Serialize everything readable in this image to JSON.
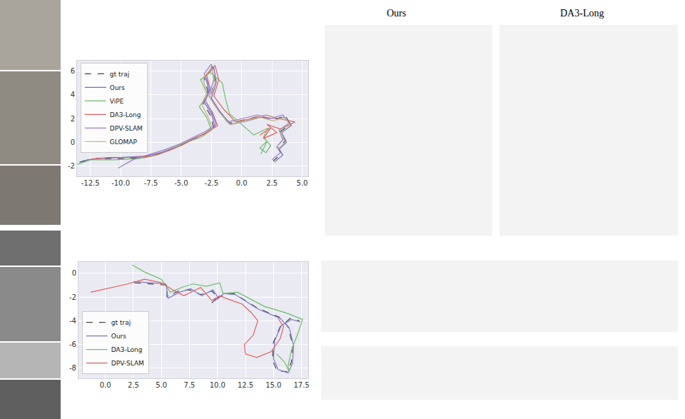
{
  "panel_titles": [
    "Ours",
    "DA3-Long"
  ],
  "chart_data": [
    {
      "type": "line",
      "grid": true,
      "legend": "upper left",
      "xlim": [
        -13.6,
        5.5
      ],
      "ylim": [
        -2.9,
        6.9
      ],
      "xticks": [
        -12.5,
        {
          "value": -10,
          "label": "-10.0"
        },
        -7.5,
        {
          "value": -5,
          "label": "-5.0"
        },
        -2.5,
        {
          "value": 0,
          "label": "0.0"
        },
        2.5,
        {
          "value": 5,
          "label": "5.0"
        }
      ],
      "yticks": [
        -2,
        0,
        2,
        4,
        6
      ],
      "series": [
        {
          "name": "gt traj",
          "color": "#444444",
          "line_style": "dashed",
          "x": [
            -13.4,
            -12,
            -10,
            -8,
            -6.8,
            -5.5,
            -4.3,
            -3.2,
            -2.3,
            -2.6,
            -3.2,
            -2.8,
            -3.1,
            -2.4,
            -2.2,
            -2.6,
            -1.9,
            -1.0,
            0.3,
            1.5,
            2.6,
            3.6,
            4.0,
            3.2,
            3.6,
            3.0,
            3.3,
            2.6
          ],
          "values": [
            -1.7,
            -1.4,
            -1.4,
            -1.3,
            -1.0,
            -0.5,
            0.1,
            0.6,
            1.2,
            2.3,
            3.3,
            4.3,
            5.5,
            6.4,
            5.2,
            3.8,
            2.7,
            1.6,
            1.9,
            2.2,
            1.9,
            2.2,
            1.5,
            0.9,
            0.1,
            -0.5,
            -1.0,
            -1.6
          ]
        },
        {
          "name": "Ours",
          "color": "#6b6ec9",
          "line_style": "solid",
          "x": [
            -13.2,
            -12,
            -10,
            -8,
            -6.7,
            -5.4,
            -4.2,
            -3.1,
            -2.2,
            -2.5,
            -3.1,
            -2.7,
            -3.0,
            -2.3,
            -2.1,
            -2.5,
            -1.8,
            -0.9,
            0.4,
            1.6,
            2.7,
            3.7,
            4.1,
            3.3,
            3.7,
            3.1,
            3.4,
            2.7
          ],
          "values": [
            -1.6,
            -1.4,
            -1.3,
            -1.2,
            -0.9,
            -0.4,
            0.2,
            0.7,
            1.3,
            2.4,
            3.4,
            4.4,
            5.6,
            6.3,
            5.1,
            3.7,
            2.6,
            1.5,
            1.8,
            2.1,
            2.0,
            2.1,
            1.4,
            0.8,
            0.0,
            -0.6,
            -1.1,
            -1.7
          ]
        },
        {
          "name": "ViPE",
          "color": "#6dbf6d",
          "line_style": "solid",
          "x": [
            -13.9,
            -12.5,
            -10.5,
            -8.5,
            -7,
            -5.8,
            -4.6,
            -3.4,
            -2.5,
            -2.9,
            -3.5,
            -2.8,
            -3.4,
            -2.6,
            -1.6,
            -1.3,
            -1.0,
            0.2,
            1.0,
            2.2,
            1.8,
            2.4,
            2.0,
            1.5,
            2.1,
            1.6
          ],
          "values": [
            -2.0,
            -1.5,
            -1.5,
            -1.4,
            -1.1,
            -0.6,
            0.0,
            0.4,
            1.0,
            2.1,
            3.0,
            4.0,
            5.3,
            5.9,
            5.0,
            3.5,
            2.4,
            1.3,
            0.6,
            1.2,
            0.4,
            -0.3,
            -0.9,
            -0.5,
            0.1,
            -1.0
          ]
        },
        {
          "name": "DA3-Long",
          "color": "#e0605e",
          "line_style": "solid",
          "x": [
            -12.8,
            -11,
            -9,
            -7.5,
            -6.2,
            -5.0,
            -3.9,
            -2.9,
            -2.0,
            -2.4,
            -3.0,
            -2.6,
            -2.9,
            -2.2,
            -1.9,
            -2.3,
            -1.5,
            -0.5,
            0.8,
            2.0,
            3.0,
            4.4,
            3.2,
            2.1,
            2.9,
            1.8,
            2.4,
            1.5
          ],
          "values": [
            -1.5,
            -1.3,
            -1.3,
            -1.2,
            -0.8,
            -0.3,
            0.3,
            0.8,
            1.4,
            2.5,
            3.5,
            4.5,
            5.7,
            6.5,
            5.3,
            3.9,
            2.8,
            1.7,
            2.0,
            2.3,
            2.0,
            1.7,
            1.1,
            1.5,
            0.8,
            0.3,
            1.2,
            0.6
          ]
        },
        {
          "name": "DPV-SLAM",
          "color": "#9a7cc4",
          "line_style": "solid",
          "x": [
            -10.2,
            -9,
            -7.8,
            -6.5,
            -5.2,
            -4.0,
            -3.0,
            -2.1,
            -2.5,
            -3.0,
            -2.6,
            -3.1,
            -2.5,
            -2.3,
            -2.7,
            -2.0,
            -1.2,
            0.1,
            1.3,
            2.4,
            3.4,
            3.9,
            3.1,
            3.4,
            2.9,
            3.2,
            2.5
          ],
          "values": [
            -2.2,
            -1.5,
            -1.1,
            -0.7,
            -0.2,
            0.4,
            0.9,
            1.5,
            2.6,
            3.5,
            4.6,
            5.8,
            6.6,
            5.3,
            3.9,
            2.8,
            1.7,
            2.0,
            2.3,
            2.0,
            2.3,
            1.6,
            1.0,
            0.2,
            -0.4,
            -0.9,
            -1.5
          ]
        },
        {
          "name": "GLOMAP",
          "color": "#c9b77a",
          "line_style": "solid",
          "x": [
            -3.2,
            -2.4,
            -2.8,
            -3.3,
            -2.9,
            -3.2,
            -2.5,
            -2.2,
            -2.6,
            -1.9,
            -1.0,
            0.3,
            1.5,
            2.6,
            3.6,
            4.0,
            3.2,
            3.6,
            3.0
          ],
          "values": [
            0.5,
            1.1,
            2.2,
            3.2,
            4.2,
            5.4,
            6.3,
            5.1,
            3.7,
            2.6,
            1.5,
            1.8,
            2.1,
            1.8,
            2.1,
            1.4,
            0.8,
            0.0,
            -0.6
          ]
        }
      ]
    },
    {
      "type": "line",
      "grid": true,
      "legend": "lower left",
      "xlim": [
        -2.4,
        18.1
      ],
      "ylim": [
        -8.85,
        0.95
      ],
      "xticks": [
        {
          "value": 0,
          "label": "0.0"
        },
        2.5,
        {
          "value": 5,
          "label": "5.0"
        },
        7.5,
        {
          "value": 10,
          "label": "10.0"
        },
        12.5,
        {
          "value": 15,
          "label": "15.0"
        },
        17.5
      ],
      "yticks": [
        -8,
        -6,
        -4,
        -2,
        0
      ],
      "series": [
        {
          "name": "gt traj",
          "color": "#444444",
          "line_style": "dashed",
          "x": [
            2.6,
            4,
            5.5,
            5.5,
            6.5,
            7.5,
            8.5,
            9.5,
            10,
            9.5,
            10.5,
            11.5,
            12.5,
            13.5,
            14.5,
            15.5,
            16.3,
            16.7,
            16.6,
            16.2,
            15.3,
            14.9,
            15.0,
            15.6,
            16.5,
            17.3
          ],
          "values": [
            -0.8,
            -0.9,
            -1.0,
            -2.0,
            -1.5,
            -1.4,
            -1.8,
            -1.5,
            -2.0,
            -2.5,
            -1.8,
            -1.7,
            -2.3,
            -2.9,
            -3.3,
            -3.7,
            -4.5,
            -6.0,
            -7.5,
            -8.3,
            -8.2,
            -7.3,
            -5.8,
            -4.5,
            -3.8,
            -4.0
          ]
        },
        {
          "name": "Ours",
          "color": "#7b78c8",
          "line_style": "solid",
          "x": [
            2.5,
            4,
            5.4,
            5.6,
            6.6,
            7.6,
            8.6,
            9.6,
            10.1,
            9.6,
            10.6,
            11.6,
            12.6,
            13.6,
            14.6,
            15.6,
            16.4,
            16.8,
            16.7,
            16.3,
            15.4,
            15.0,
            15.1,
            15.7,
            16.6,
            17.4
          ],
          "values": [
            -0.7,
            -0.8,
            -0.9,
            -2.1,
            -1.6,
            -1.3,
            -1.9,
            -1.4,
            -2.1,
            -2.4,
            -1.7,
            -1.8,
            -2.4,
            -3.0,
            -3.4,
            -3.8,
            -4.6,
            -6.1,
            -7.6,
            -8.4,
            -8.1,
            -7.2,
            -5.7,
            -4.4,
            -3.9,
            -4.1
          ]
        },
        {
          "name": "DA3-Long",
          "color": "#6dbf6d",
          "line_style": "solid",
          "x": [
            2.4,
            3.5,
            5,
            5.8,
            6.8,
            7.8,
            9,
            10.2,
            10.5,
            11.8,
            13,
            14.2,
            15.3,
            16.3,
            17.6,
            17.2,
            16.6,
            16.3,
            16.4,
            16.0,
            15.3
          ],
          "values": [
            0.7,
            0.1,
            -0.5,
            -1.6,
            -1.2,
            -0.9,
            -1.1,
            -0.8,
            -1.7,
            -1.6,
            -2.2,
            -2.8,
            -3.1,
            -3.4,
            -3.9,
            -5.0,
            -6.5,
            -7.8,
            -8.3,
            -7.5,
            -6.8
          ]
        },
        {
          "name": "DPV-SLAM",
          "color": "#e0605e",
          "line_style": "solid",
          "x": [
            -1.3,
            0.5,
            2.0,
            3.5,
            5,
            6,
            7,
            8.5,
            9.5,
            10.2,
            11.0,
            12.2,
            13.0,
            13.6,
            13.2,
            12.4,
            12.5,
            13.5,
            14.8,
            15.6,
            15.9,
            15.4
          ],
          "values": [
            -1.6,
            -1.2,
            -0.9,
            -0.5,
            -0.8,
            -1.4,
            -1.9,
            -1.2,
            -2.3,
            -1.9,
            -2.2,
            -2.6,
            -3.3,
            -4.0,
            -5.2,
            -6.0,
            -6.8,
            -7.1,
            -6.6,
            -5.5,
            -4.5,
            -3.8
          ]
        }
      ]
    }
  ]
}
